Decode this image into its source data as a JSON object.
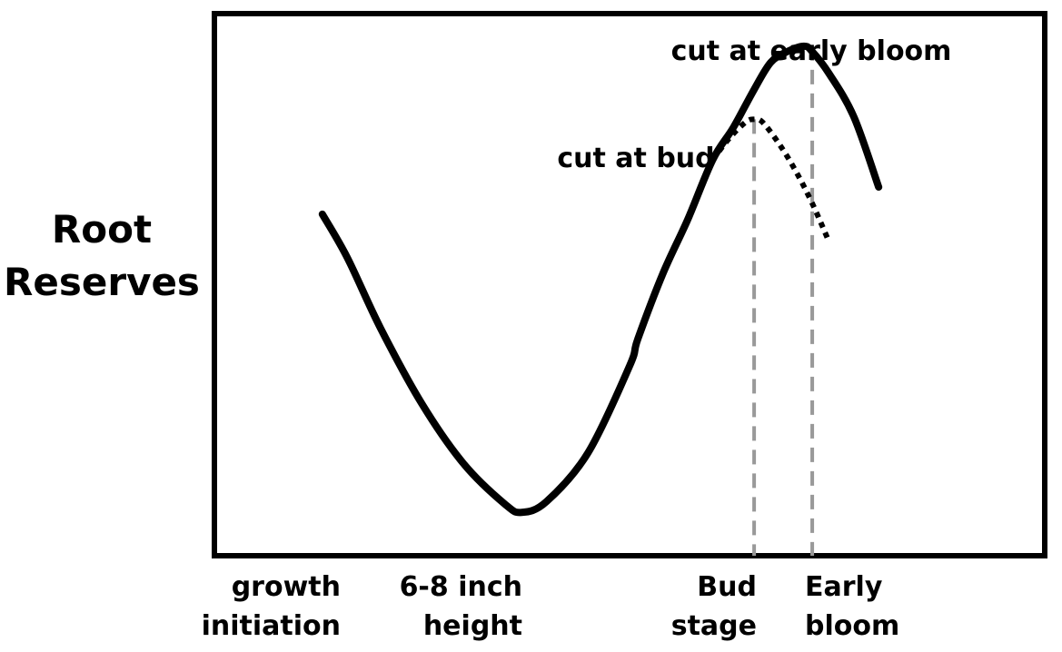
{
  "chart_data": {
    "type": "line",
    "title": "",
    "ylabel": [
      "Root",
      "Reserves"
    ],
    "xlabel": "",
    "xlim": [
      0,
      100
    ],
    "ylim": [
      0,
      100
    ],
    "grid": false,
    "legend": "none",
    "x_tick_labels": [
      {
        "x": 10,
        "lines": [
          "growth",
          "initiation"
        ]
      },
      {
        "x": 29,
        "lines": [
          "6-8 inch",
          "height"
        ]
      },
      {
        "x": 65,
        "lines": [
          "Bud",
          "stage"
        ]
      },
      {
        "x": 72,
        "lines": [
          "Early",
          "bloom"
        ]
      }
    ],
    "markers": [
      {
        "name": "Bud stage",
        "x": 65,
        "style": "dashed",
        "color": "#999999"
      },
      {
        "x": 72,
        "style": "dashed",
        "color": "#999999"
      }
    ],
    "series": [
      {
        "style": "solid",
        "color": "#000000",
        "x": [
          13,
          16,
          20,
          25,
          30,
          35,
          37,
          40,
          45,
          50,
          51,
          54,
          57,
          60,
          62.5,
          65,
          67,
          69,
          71,
          72,
          74,
          77,
          80
        ],
        "y": [
          63,
          55,
          42,
          28,
          17,
          9.5,
          8,
          10,
          19,
          35,
          40,
          52,
          62,
          73,
          79,
          86,
          91,
          93,
          94,
          93,
          89,
          81,
          68
        ]
      },
      {
        "style": "dotted",
        "color": "#000000",
        "x": [
          60,
          62,
          64,
          65,
          66,
          68,
          70,
          72,
          74
        ],
        "y": [
          73,
          77,
          80,
          80.5,
          80,
          76,
          71,
          65,
          58
        ]
      }
    ],
    "annotations": [
      {
        "text": "cut at early bloom",
        "x": 73,
        "y": 100
      },
      {
        "text": "cut at bud",
        "x": 52,
        "y": 84
      }
    ]
  }
}
